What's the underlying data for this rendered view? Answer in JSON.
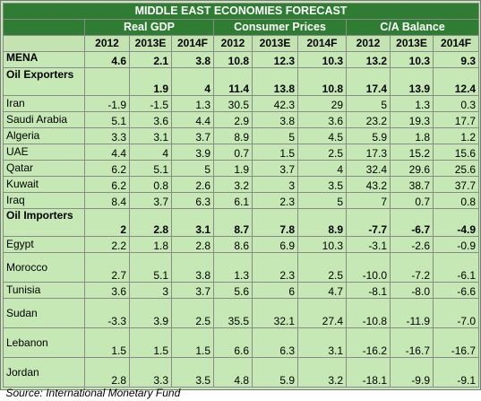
{
  "title": "MIDDLE EAST ECONOMIES FORECAST",
  "groups": [
    "Real GDP",
    "Consumer Prices",
    "C/A Balance"
  ],
  "years": [
    "2012",
    "2013E",
    "2014F",
    "2012",
    "2013E",
    "2014F",
    "2012",
    "2013E",
    "2014F"
  ],
  "rows": [
    {
      "label": "MENA",
      "values": [
        "4.6",
        "2.1",
        "3.8",
        "10.8",
        "12.3",
        "10.3",
        "13.2",
        "10.3",
        "9.3"
      ]
    },
    {
      "label": "Oil Exporters",
      "values": [
        "",
        "1.9",
        "4",
        "11.4",
        "13.8",
        "10.8",
        "17.4",
        "13.9",
        "12.4"
      ]
    },
    {
      "label": "Iran",
      "values": [
        "-1.9",
        "-1.5",
        "1.3",
        "30.5",
        "42.3",
        "29",
        "5",
        "1.3",
        "0.3"
      ]
    },
    {
      "label": "Saudi Arabia",
      "values": [
        "5.1",
        "3.6",
        "4.4",
        "2.9",
        "3.8",
        "3.6",
        "23.2",
        "19.3",
        "17.7"
      ]
    },
    {
      "label": "Algeria",
      "values": [
        "3.3",
        "3.1",
        "3.7",
        "8.9",
        "5",
        "4.5",
        "5.9",
        "1.8",
        "1.2"
      ]
    },
    {
      "label": "UAE",
      "values": [
        "4.4",
        "4",
        "3.9",
        "0.7",
        "1.5",
        "2.5",
        "17.3",
        "15.2",
        "15.6"
      ]
    },
    {
      "label": "Qatar",
      "values": [
        "6.2",
        "5.1",
        "5",
        "1.9",
        "3.7",
        "4",
        "32.4",
        "29.6",
        "25.6"
      ]
    },
    {
      "label": "Kuwait",
      "values": [
        "6.2",
        "0.8",
        "2.6",
        "3.2",
        "3",
        "3.5",
        "43.2",
        "38.7",
        "37.7"
      ]
    },
    {
      "label": "Iraq",
      "values": [
        "8.4",
        "3.7",
        "6.3",
        "6.1",
        "2.3",
        "5",
        "7",
        "0.7",
        "0.8"
      ]
    },
    {
      "label": "Oil Importers",
      "values": [
        "2",
        "2.8",
        "3.1",
        "8.7",
        "7.8",
        "8.9",
        "-7.7",
        "-6.7",
        "-4.9"
      ]
    },
    {
      "label": "Egypt",
      "values": [
        "2.2",
        "1.8",
        "2.8",
        "8.6",
        "6.9",
        "10.3",
        "-3.1",
        "-2.6",
        "-0.9"
      ]
    },
    {
      "label": "Morocco",
      "values": [
        "2.7",
        "5.1",
        "3.8",
        "1.3",
        "2.3",
        "2.5",
        "-10.0",
        "-7.2",
        "-6.1"
      ]
    },
    {
      "label": "Tunisia",
      "values": [
        "3.6",
        "3",
        "3.7",
        "5.6",
        "6",
        "4.7",
        "-8.1",
        "-8.0",
        "-6.6"
      ]
    },
    {
      "label": "Sudan",
      "values": [
        "-3.3",
        "3.9",
        "2.5",
        "35.5",
        "32.1",
        "27.4",
        "-10.8",
        "-11.9",
        "-7.0"
      ]
    },
    {
      "label": "Lebanon",
      "values": [
        "1.5",
        "1.5",
        "1.5",
        "6.6",
        "6.3",
        "3.1",
        "-16.2",
        "-16.7",
        "-16.7"
      ]
    },
    {
      "label": "Jordan",
      "values": [
        "2.8",
        "3.3",
        "3.5",
        "4.8",
        "5.9",
        "3.2",
        "-18.1",
        "-9.9",
        "-9.1"
      ]
    }
  ],
  "source": "Source: International Monetary Fund",
  "colors": {
    "header_bg": "#2e7d32",
    "body_bg": "#c6e8b4",
    "header_text": "#ffffff"
  }
}
